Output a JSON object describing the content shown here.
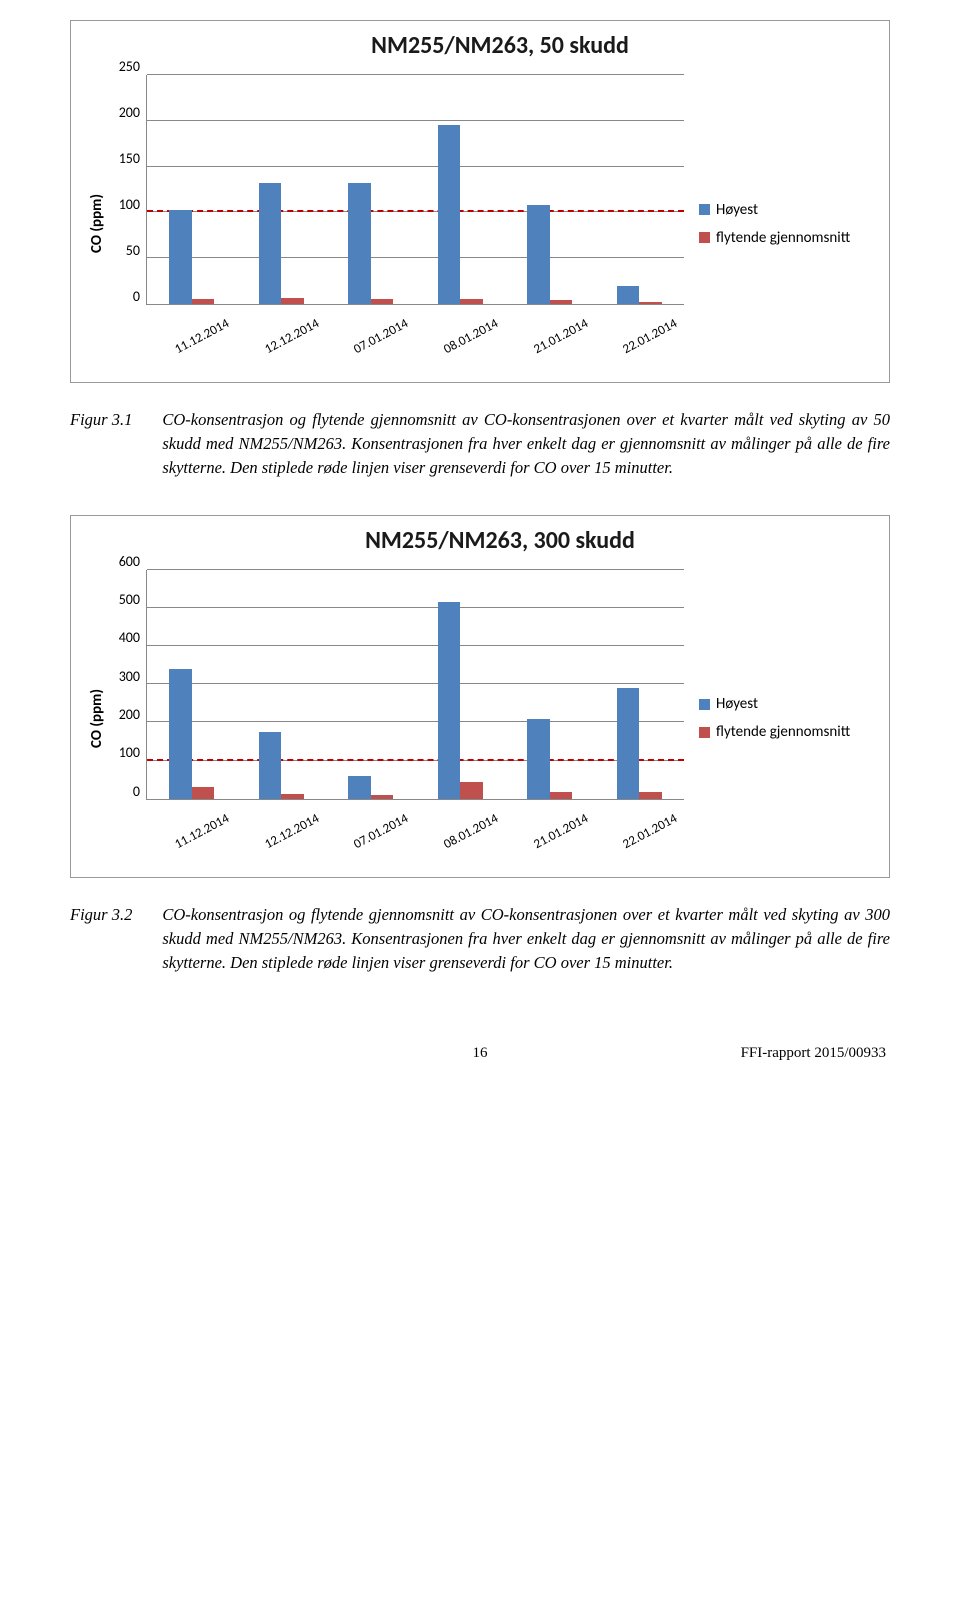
{
  "colors": {
    "series1": "#4f81bd",
    "series2": "#c0504d",
    "grid": "#888888",
    "refline": "#c00000",
    "border": "#999999"
  },
  "chart1": {
    "title": "NM255/NM263, 50 skudd",
    "ylabel": "CO (ppm)",
    "ymax": 250,
    "ytick_step": 50,
    "ref_value": 100,
    "categories": [
      "11.12.2014",
      "12.12.2014",
      "07.01.2014",
      "08.01.2014",
      "21.01.2014",
      "22.01.2014"
    ],
    "series": [
      {
        "name": "Høyest",
        "color": "#4f81bd",
        "values": [
          103,
          132,
          132,
          195,
          108,
          20
        ]
      },
      {
        "name": "flytende gjennomsnitt",
        "color": "#c0504d",
        "values": [
          5,
          7,
          6,
          6,
          4,
          2
        ]
      }
    ]
  },
  "chart2": {
    "title": "NM255/NM263, 300 skudd",
    "ylabel": "CO (ppm)",
    "ymax": 600,
    "ytick_step": 100,
    "ref_value": 100,
    "categories": [
      "11.12.2014",
      "12.12.2014",
      "07.01.2014",
      "08.01.2014",
      "21.01.2014",
      "22.01.2014"
    ],
    "series": [
      {
        "name": "Høyest",
        "color": "#4f81bd",
        "values": [
          340,
          175,
          60,
          515,
          210,
          290
        ]
      },
      {
        "name": "flytende gjennomsnitt",
        "color": "#c0504d",
        "values": [
          30,
          12,
          10,
          45,
          18,
          18
        ]
      }
    ]
  },
  "caption1": {
    "label": "Figur 3.1",
    "text": "CO-konsentrasjon og flytende gjennomsnitt av CO-konsentrasjonen over et kvarter målt ved skyting av 50 skudd med NM255/NM263. Konsentrasjonen fra hver enkelt dag er gjennomsnitt av målinger på alle de fire skytterne. Den stiplede røde linjen viser grenseverdi for CO over 15 minutter."
  },
  "caption2": {
    "label": "Figur 3.2",
    "text": "CO-konsentrasjon og flytende gjennomsnitt av CO-konsentrasjonen over et kvarter målt ved skyting av 300 skudd med NM255/NM263. Konsentrasjonen fra hver enkelt dag er gjennomsnitt av målinger på alle de fire skytterne. Den stiplede røde linjen viser grenseverdi for CO over 15 minutter."
  },
  "footer": {
    "page": "16",
    "doc": "FFI-rapport 2015/00933"
  }
}
